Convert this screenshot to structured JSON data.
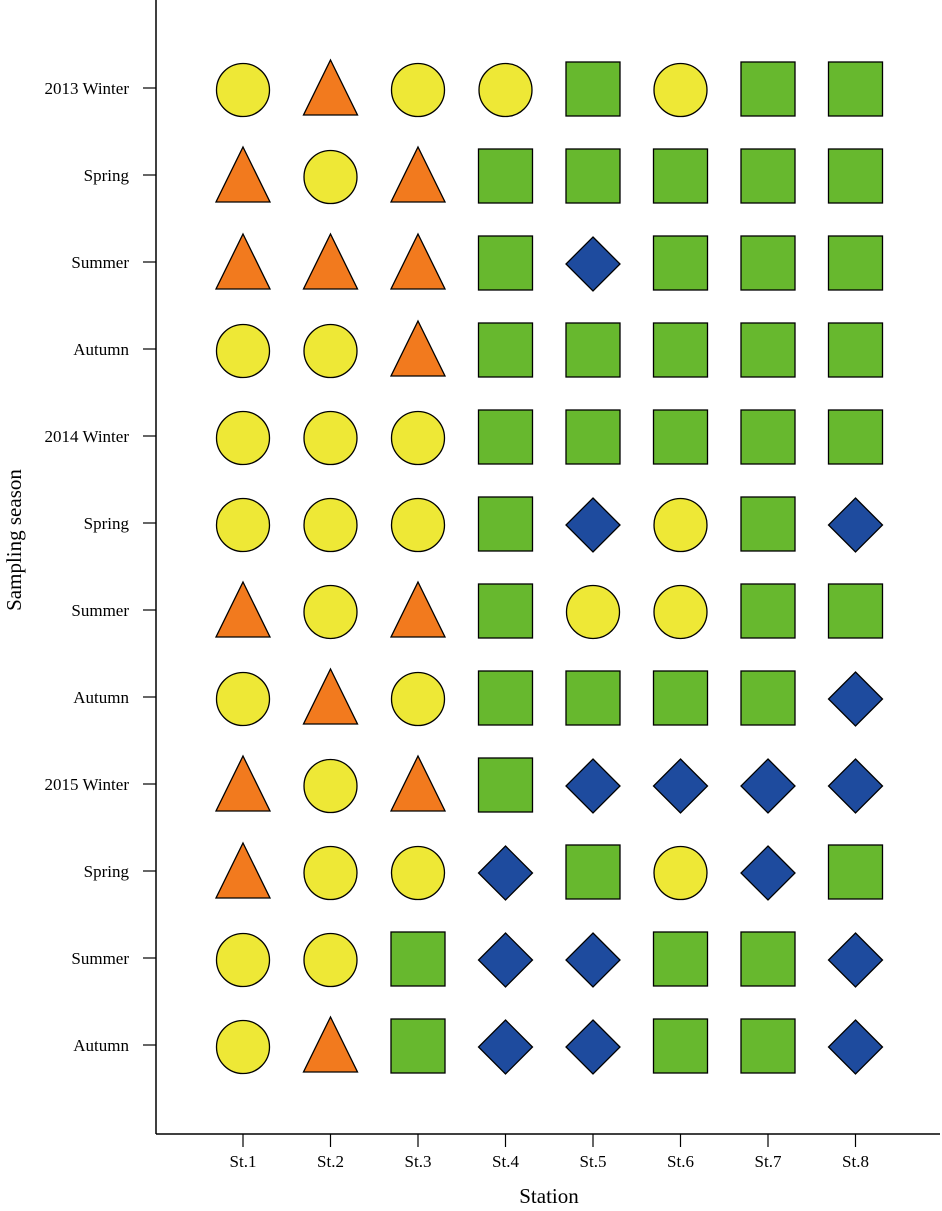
{
  "chart_data": {
    "type": "scatter",
    "title": "",
    "xlabel": "Station",
    "ylabel": "Sampling season",
    "grid": false,
    "legend": "none",
    "categories": [
      "St.1",
      "St.2",
      "St.3",
      "St.4",
      "St.5",
      "St.6",
      "St.7",
      "St.8"
    ],
    "seasons": [
      "2013 Winter",
      "Spring",
      "Summer",
      "Autumn",
      "2014 Winter",
      "Spring",
      "Summer",
      "Autumn",
      "2015 Winter",
      "Spring",
      "Summer",
      "Autumn"
    ],
    "marker_colors": {
      "circle": "#EEE836",
      "triangle": "#F27A1E",
      "square": "#67B82E",
      "diamond": "#1E4B9E"
    },
    "grid_values": [
      [
        "circle",
        "triangle",
        "circle",
        "circle",
        "square",
        "circle",
        "square",
        "square"
      ],
      [
        "triangle",
        "circle",
        "triangle",
        "square",
        "square",
        "square",
        "square",
        "square"
      ],
      [
        "triangle",
        "triangle",
        "triangle",
        "square",
        "diamond",
        "square",
        "square",
        "square"
      ],
      [
        "circle",
        "circle",
        "triangle",
        "square",
        "square",
        "square",
        "square",
        "square"
      ],
      [
        "circle",
        "circle",
        "circle",
        "square",
        "square",
        "square",
        "square",
        "square"
      ],
      [
        "circle",
        "circle",
        "circle",
        "square",
        "diamond",
        "circle",
        "square",
        "diamond"
      ],
      [
        "triangle",
        "circle",
        "triangle",
        "square",
        "circle",
        "circle",
        "square",
        "square"
      ],
      [
        "circle",
        "triangle",
        "circle",
        "square",
        "square",
        "square",
        "square",
        "diamond"
      ],
      [
        "triangle",
        "circle",
        "triangle",
        "square",
        "diamond",
        "diamond",
        "diamond",
        "diamond"
      ],
      [
        "triangle",
        "circle",
        "circle",
        "diamond",
        "square",
        "circle",
        "diamond",
        "square"
      ],
      [
        "circle",
        "circle",
        "square",
        "diamond",
        "diamond",
        "square",
        "square",
        "diamond"
      ],
      [
        "circle",
        "triangle",
        "square",
        "diamond",
        "diamond",
        "square",
        "square",
        "diamond"
      ]
    ]
  }
}
